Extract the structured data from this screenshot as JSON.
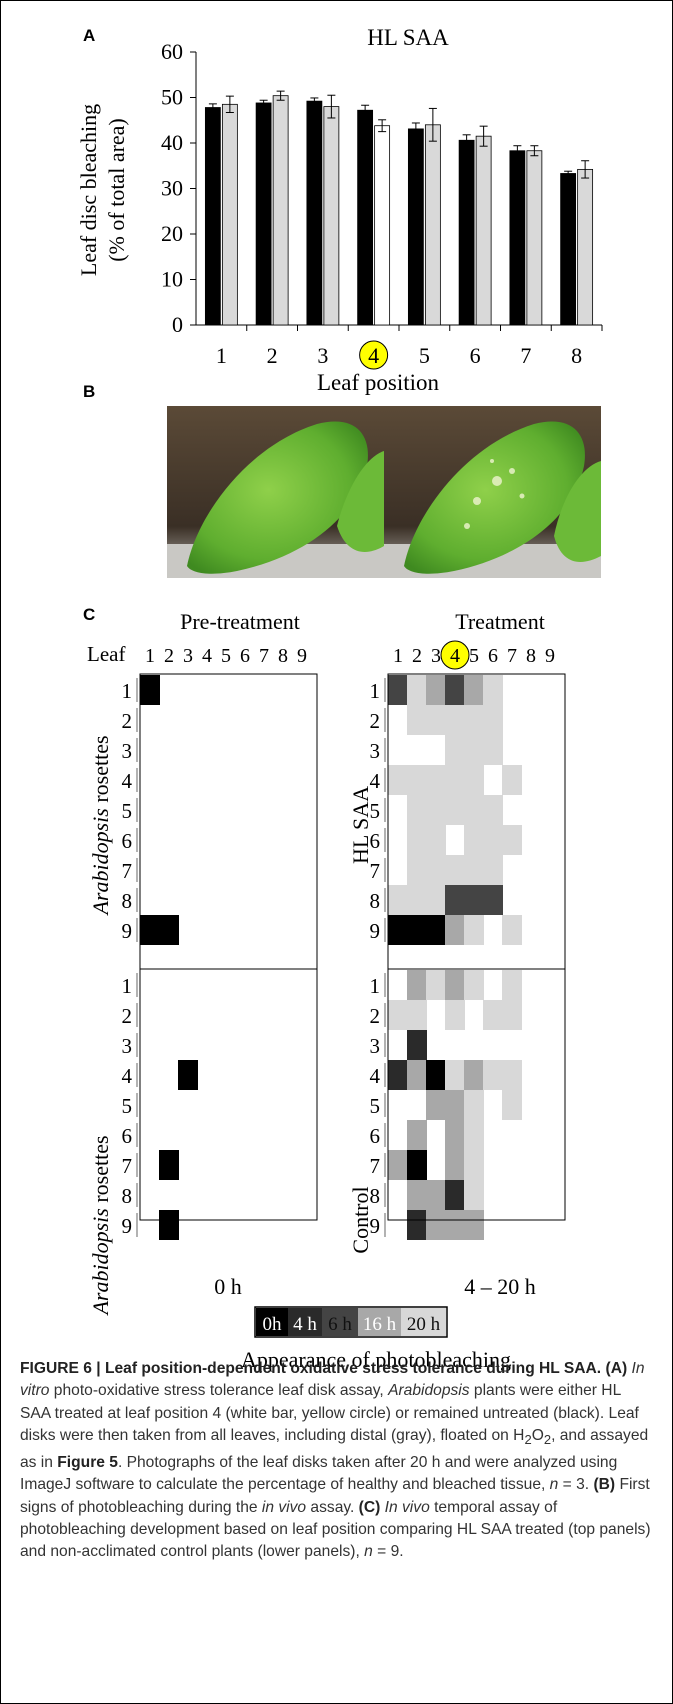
{
  "panel_letters": {
    "a": "A",
    "b": "B",
    "c": "C"
  },
  "chart_data": {
    "type": "bar",
    "title": "HL SAA",
    "xlabel": "Leaf position",
    "ylabel_line1": "Leaf disc bleaching",
    "ylabel_line2": "(% of total area)",
    "ylim": [
      0,
      60
    ],
    "yticks": [
      "0",
      "10",
      "20",
      "30",
      "40",
      "50",
      "60"
    ],
    "categories": [
      "1",
      "2",
      "3",
      "4",
      "5",
      "6",
      "7",
      "8"
    ],
    "highlight_category": "4",
    "series": [
      {
        "values": [
          47.8,
          48.8,
          49.2,
          47.2,
          43.1,
          40.6,
          38.3,
          33.3
        ],
        "errors": [
          0.8,
          0.6,
          0.7,
          1.1,
          1.3,
          1.2,
          1.1,
          0.5
        ],
        "color": "#000000"
      },
      {
        "values": [
          48.5,
          50.4,
          48.0,
          43.8,
          44.0,
          41.5,
          38.3,
          34.2
        ],
        "errors": [
          1.8,
          1.0,
          2.5,
          1.3,
          3.6,
          2.2,
          1.1,
          1.9
        ],
        "color": "#d9d9d9"
      }
    ],
    "grid": false,
    "legend": "none"
  },
  "heatmap": {
    "pre_title": "Pre-treatment",
    "treat_title": "Treatment",
    "leaf_label": "Leaf",
    "columns": [
      "1",
      "2",
      "3",
      "4",
      "5",
      "6",
      "7",
      "8",
      "9"
    ],
    "rows": [
      "1",
      "2",
      "3",
      "4",
      "5",
      "6",
      "7",
      "8",
      "9"
    ],
    "highlight_column": "4",
    "ylabel_italic": "Arabidopsis",
    "ylabel_rest": " rosettes",
    "hl_label": "HL SAA",
    "control_label": "Control",
    "pre_time": "0 h",
    "treat_time": "4 – 20 h",
    "colors": [
      "#ffffff",
      "#000000",
      "#2a2a2a",
      "#444444",
      "#a8a8a8",
      "#d8d8d8"
    ],
    "pre_hl": [
      [
        1,
        0,
        0,
        0,
        0,
        0,
        0,
        0,
        0
      ],
      [
        0,
        0,
        0,
        0,
        0,
        0,
        0,
        0,
        0
      ],
      [
        0,
        0,
        0,
        0,
        0,
        0,
        0,
        0,
        0
      ],
      [
        0,
        0,
        0,
        0,
        0,
        0,
        0,
        0,
        0
      ],
      [
        0,
        0,
        0,
        0,
        0,
        0,
        0,
        0,
        0
      ],
      [
        0,
        0,
        0,
        0,
        0,
        0,
        0,
        0,
        0
      ],
      [
        0,
        0,
        0,
        0,
        0,
        0,
        0,
        0,
        0
      ],
      [
        0,
        0,
        0,
        0,
        0,
        0,
        0,
        0,
        0
      ],
      [
        1,
        1,
        0,
        0,
        0,
        0,
        0,
        0,
        0
      ]
    ],
    "pre_ctrl": [
      [
        0,
        0,
        0,
        0,
        0,
        0,
        0,
        0,
        0
      ],
      [
        0,
        0,
        0,
        0,
        0,
        0,
        0,
        0,
        0
      ],
      [
        0,
        0,
        0,
        0,
        0,
        0,
        0,
        0,
        0
      ],
      [
        0,
        0,
        1,
        0,
        0,
        0,
        0,
        0,
        0
      ],
      [
        0,
        0,
        0,
        0,
        0,
        0,
        0,
        0,
        0
      ],
      [
        0,
        0,
        0,
        0,
        0,
        0,
        0,
        0,
        0
      ],
      [
        0,
        1,
        0,
        0,
        0,
        0,
        0,
        0,
        0
      ],
      [
        0,
        0,
        0,
        0,
        0,
        0,
        0,
        0,
        0
      ],
      [
        0,
        1,
        0,
        0,
        0,
        0,
        0,
        0,
        0
      ]
    ],
    "treat_hl": [
      [
        3,
        5,
        4,
        3,
        4,
        5,
        0,
        0,
        0
      ],
      [
        0,
        5,
        5,
        5,
        5,
        5,
        0,
        0,
        0
      ],
      [
        0,
        0,
        0,
        5,
        5,
        5,
        0,
        0,
        0
      ],
      [
        5,
        5,
        5,
        5,
        5,
        0,
        5,
        0,
        0
      ],
      [
        0,
        5,
        5,
        5,
        5,
        5,
        0,
        0,
        0
      ],
      [
        0,
        5,
        5,
        0,
        5,
        5,
        5,
        0,
        0
      ],
      [
        0,
        5,
        5,
        5,
        5,
        5,
        0,
        0,
        0
      ],
      [
        5,
        5,
        5,
        3,
        3,
        3,
        0,
        0,
        0
      ],
      [
        1,
        1,
        1,
        4,
        5,
        0,
        5,
        0,
        0
      ]
    ],
    "treat_ctrl": [
      [
        0,
        4,
        5,
        4,
        5,
        0,
        5,
        0,
        0
      ],
      [
        5,
        5,
        0,
        5,
        0,
        5,
        5,
        0,
        0
      ],
      [
        0,
        2,
        0,
        0,
        0,
        0,
        0,
        0,
        0
      ],
      [
        2,
        4,
        1,
        5,
        4,
        5,
        5,
        0,
        0
      ],
      [
        0,
        0,
        4,
        4,
        5,
        0,
        5,
        0,
        0
      ],
      [
        0,
        4,
        0,
        4,
        5,
        0,
        0,
        0,
        0
      ],
      [
        4,
        1,
        0,
        4,
        5,
        0,
        0,
        0,
        0
      ],
      [
        0,
        4,
        4,
        2,
        5,
        0,
        0,
        0,
        0
      ],
      [
        0,
        2,
        4,
        4,
        4,
        0,
        0,
        0,
        0
      ]
    ]
  },
  "legend_scale": {
    "items": [
      {
        "label": "0h",
        "color": "#000000",
        "text_color": "#ffffff"
      },
      {
        "label": "4 h",
        "color": "#2a2a2a",
        "text_color": "#ffffff"
      },
      {
        "label": "6 h",
        "color": "#444444",
        "text_color": "#111111"
      },
      {
        "label": "16 h",
        "color": "#a8a8a8",
        "text_color": "#ffffff"
      },
      {
        "label": "20 h",
        "color": "#d8d8d8",
        "text_color": "#111111"
      }
    ],
    "caption": "Appearance of photobleaching"
  },
  "figure_caption": {
    "label": "FIGURE 6 | Leaf position-dependent oxidative stress tolerance during HL SAA.",
    "a_label": "(A)",
    "a_italic": "In vitro",
    "a_text1": " photo-oxidative stress tolerance leaf disk assay, ",
    "a_italic2": "Arabidopsis",
    "a_text2": " plants were either HL SAA treated at leaf position 4 (white bar, yellow circle) or remained untreated (black). Leaf disks were then taken from all leaves, including distal (gray), floated on H",
    "sub2": "2",
    "o_text": "O",
    "a_text3": ", and assayed as in ",
    "fig5": "Figure 5",
    "a_text4": ". Photographs of the leaf disks taken after 20 h and were analyzed using ImageJ software to calculate the percentage of healthy and bleached tissue, ",
    "n_italic": "n",
    "a_text5": " = 3. ",
    "b_label": "(B)",
    "b_text1": " First signs of photobleaching during the ",
    "b_italic": "in vivo",
    "b_text2": " assay. ",
    "c_label": "(C)",
    "c_italic": "In vivo",
    "c_text1": " temporal assay of photobleaching development based on leaf position comparing HL SAA treated (top panels) and non-acclimated control plants (lower panels), ",
    "n_italic2": "n",
    "c_text2": " = 9."
  }
}
